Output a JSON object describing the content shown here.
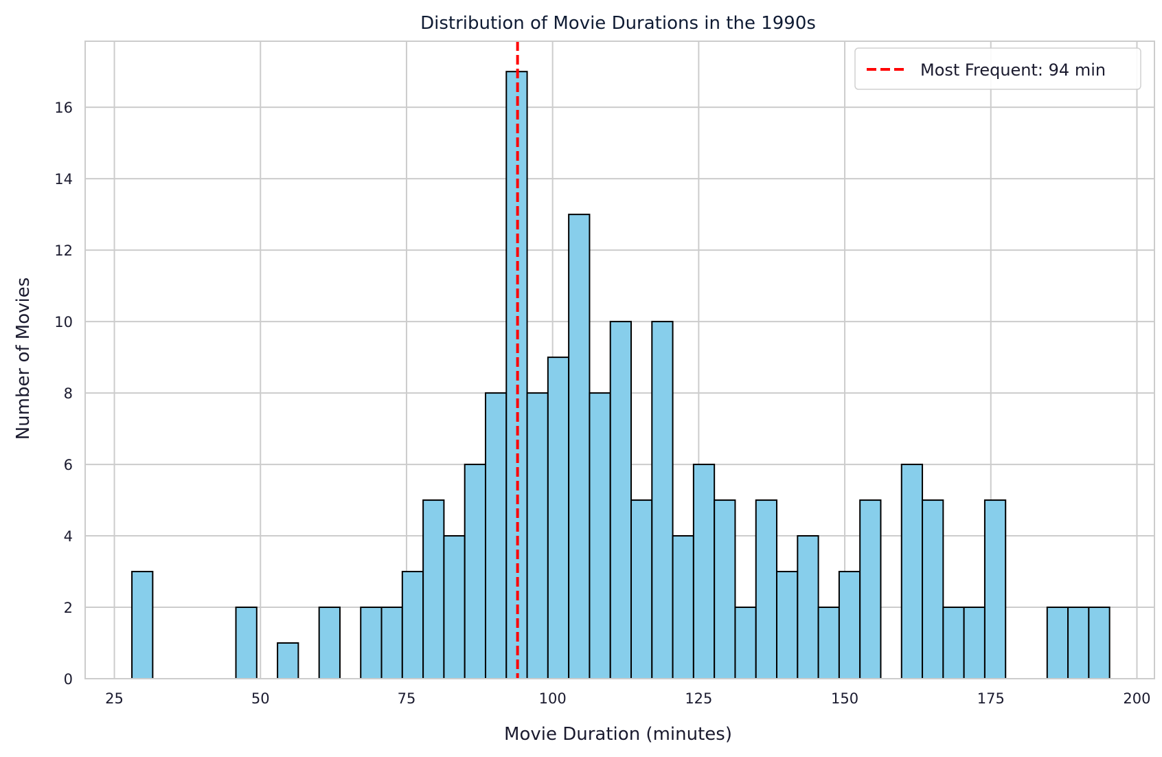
{
  "chart_data": {
    "type": "bar",
    "title": "Distribution of Movie Durations in the 1990s",
    "xlabel": "Movie Duration (minutes)",
    "ylabel": "Number of Movies",
    "xlim": [
      20,
      203
    ],
    "ylim": [
      0,
      17.85
    ],
    "xticks": [
      25,
      50,
      75,
      100,
      125,
      150,
      175,
      200
    ],
    "yticks": [
      0,
      2,
      4,
      6,
      8,
      10,
      12,
      14,
      16
    ],
    "grid": true,
    "bin_start": 28,
    "bin_width": 3.56,
    "values": [
      3,
      0,
      0,
      0,
      0,
      2,
      0,
      1,
      0,
      2,
      0,
      2,
      2,
      3,
      5,
      4,
      6,
      8,
      17,
      8,
      9,
      13,
      8,
      10,
      5,
      10,
      4,
      6,
      5,
      2,
      5,
      3,
      4,
      2,
      3,
      5,
      0,
      6,
      5,
      2,
      2,
      5,
      0,
      0,
      2,
      2,
      2
    ],
    "bar_color": "#87ceeb",
    "bar_edge_color": "#000000",
    "reference_line": {
      "x": 94,
      "color": "#ff0000",
      "style": "dashed",
      "label": "Most Frequent: 94 min"
    },
    "legend_position": "top-right"
  }
}
